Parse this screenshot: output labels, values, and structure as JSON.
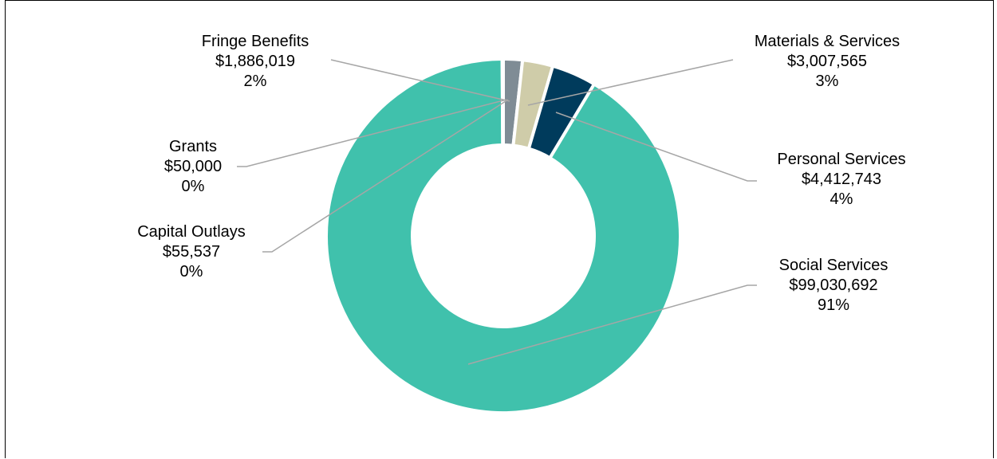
{
  "chart_data": {
    "type": "pie",
    "subtype": "donut",
    "title": "",
    "slices": [
      {
        "name": "Fringe Benefits",
        "value": 1886019,
        "value_label": "$1,886,019",
        "percent_label": "2%",
        "color": "#7f8c95"
      },
      {
        "name": "Materials & Services",
        "value": 3007565,
        "value_label": "$3,007,565",
        "percent_label": "3%",
        "color": "#cfcca9"
      },
      {
        "name": "Personal Services",
        "value": 4412743,
        "value_label": "$4,412,743",
        "percent_label": "4%",
        "color": "#003b5c"
      },
      {
        "name": "Social Services",
        "value": 99030692,
        "value_label": "$99,030,692",
        "percent_label": "91%",
        "color": "#40c1ac"
      },
      {
        "name": "Capital Outlays",
        "value": 55537,
        "value_label": "$55,537",
        "percent_label": "0%",
        "color": "#40c1ac"
      },
      {
        "name": "Grants",
        "value": 50000,
        "value_label": "$50,000",
        "percent_label": "0%",
        "color": "#40c1ac"
      }
    ],
    "legend": "none",
    "data_labels": "outside-with-leader-lines",
    "leader_line_color": "#a6a6a6"
  }
}
